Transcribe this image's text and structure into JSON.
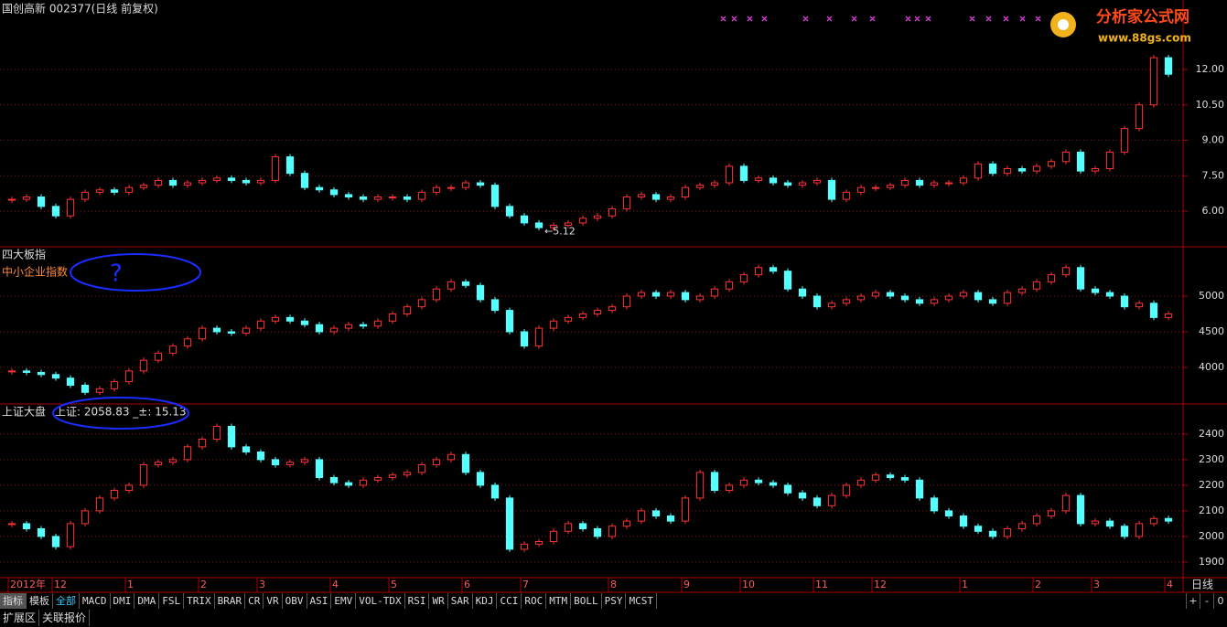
{
  "header": {
    "logo": "分析家公式网",
    "url": "www.88gs.com"
  },
  "chart_data": [
    {
      "type": "candlestick",
      "title": "国创高新 002377(日线 前复权)",
      "up_color": "#ff3232",
      "down_color": "#54ffff",
      "grid": true,
      "values": [
        6.5,
        6.6,
        6.2,
        5.8,
        6.5,
        6.8,
        6.9,
        6.8,
        7.0,
        7.1,
        7.3,
        7.1,
        7.2,
        7.3,
        7.4,
        7.3,
        7.2,
        7.3,
        8.3,
        7.6,
        7.0,
        6.9,
        6.7,
        6.6,
        6.5,
        6.6,
        6.6,
        6.5,
        6.8,
        7.0,
        7.0,
        7.2,
        7.1,
        6.2,
        5.8,
        5.5,
        5.3,
        5.4,
        5.5,
        5.7,
        5.8,
        6.1,
        6.6,
        6.7,
        6.5,
        6.6,
        7.0,
        7.1,
        7.2,
        7.9,
        7.3,
        7.4,
        7.2,
        7.1,
        7.2,
        7.3,
        6.5,
        6.8,
        7.0,
        7.0,
        7.1,
        7.3,
        7.1,
        7.2,
        7.2,
        7.4,
        8.0,
        7.6,
        7.8,
        7.7,
        7.9,
        8.1,
        8.5,
        7.7,
        7.8,
        8.5,
        9.5,
        10.5,
        12.5,
        11.8
      ],
      "ylim": [
        4.49,
        14.17
      ],
      "yticks": [
        {
          "value": 6,
          "label": "6.00"
        },
        {
          "value": 7.5,
          "label": "7.50"
        },
        {
          "value": 9,
          "label": "9.00"
        },
        {
          "value": 10.5,
          "label": "10.50"
        },
        {
          "value": 12,
          "label": "12.00"
        }
      ],
      "min_label": {
        "value": 5.12,
        "label": "←5.12"
      }
    },
    {
      "type": "candlestick",
      "title": "四大板指",
      "subtitle": "中小企业指数",
      "up_color": "#ff3232",
      "down_color": "#54ffff",
      "grid": true,
      "values": [
        3950,
        3930,
        3900,
        3850,
        3750,
        3650,
        3700,
        3800,
        3950,
        4100,
        4200,
        4300,
        4400,
        4550,
        4500,
        4480,
        4550,
        4650,
        4700,
        4650,
        4600,
        4500,
        4550,
        4600,
        4580,
        4650,
        4750,
        4850,
        4950,
        5100,
        5200,
        5150,
        4950,
        4800,
        4500,
        4300,
        4550,
        4650,
        4700,
        4750,
        4800,
        4850,
        5000,
        5050,
        5000,
        5050,
        4950,
        5000,
        5100,
        5200,
        5300,
        5400,
        5350,
        5100,
        5000,
        4850,
        4900,
        4950,
        5000,
        5050,
        5000,
        4950,
        4900,
        4950,
        5000,
        5050,
        4950,
        4900,
        5050,
        5100,
        5200,
        5300,
        5400,
        5100,
        5050,
        5000,
        4850,
        4900,
        4700,
        4750
      ],
      "ylim": [
        3487,
        5628
      ],
      "yticks": [
        4000,
        4500,
        5000
      ]
    },
    {
      "type": "candlestick",
      "title": "上证大盘",
      "subtitle": "上证: 2058.83 _±: 15.13",
      "up_color": "#ff3232",
      "down_color": "#54ffff",
      "grid": true,
      "categories": [
        "2012年",
        null,
        null,
        "12",
        null,
        null,
        null,
        null,
        "1",
        null,
        null,
        null,
        null,
        "2",
        null,
        null,
        null,
        "3",
        null,
        null,
        null,
        null,
        "4",
        null,
        null,
        null,
        "5",
        null,
        null,
        null,
        null,
        "6",
        null,
        null,
        null,
        "7",
        null,
        null,
        null,
        null,
        null,
        "8",
        null,
        null,
        null,
        null,
        "9",
        null,
        null,
        null,
        "10",
        null,
        null,
        null,
        null,
        "11",
        null,
        null,
        null,
        "12",
        null,
        null,
        null,
        null,
        null,
        "1",
        null,
        null,
        null,
        null,
        "2",
        null,
        null,
        null,
        "3",
        null,
        null,
        null,
        null,
        "4"
      ],
      "values": [
        2050,
        2030,
        2000,
        1960,
        2050,
        2100,
        2150,
        2180,
        2200,
        2280,
        2290,
        2300,
        2350,
        2380,
        2430,
        2350,
        2330,
        2300,
        2280,
        2290,
        2300,
        2230,
        2210,
        2200,
        2220,
        2230,
        2240,
        2250,
        2280,
        2300,
        2320,
        2250,
        2200,
        2150,
        1950,
        1970,
        1980,
        2020,
        2050,
        2030,
        2000,
        2040,
        2060,
        2100,
        2080,
        2060,
        2150,
        2250,
        2180,
        2200,
        2220,
        2210,
        2200,
        2170,
        2150,
        2120,
        2160,
        2200,
        2220,
        2240,
        2230,
        2220,
        2150,
        2100,
        2080,
        2040,
        2020,
        2000,
        2030,
        2050,
        2080,
        2100,
        2160,
        2050,
        2060,
        2040,
        2000,
        2050,
        2070,
        2060
      ],
      "ylim": [
        1839,
        2471
      ],
      "yticks": [
        1900,
        2000,
        2100,
        2200,
        2300,
        2400
      ]
    }
  ],
  "annotations": [
    "?"
  ],
  "period": "日线",
  "tabs": [
    "指标",
    "模板",
    "全部",
    "MACD",
    "DMI",
    "DMA",
    "FSL",
    "TRIX",
    "BRAR",
    "CR",
    "VR",
    "OBV",
    "ASI",
    "EMV",
    "VOL-TDX",
    "RSI",
    "WR",
    "SAR",
    "KDJ",
    "CCI",
    "ROC",
    "MTM",
    "BOLL",
    "PSY",
    "MCST"
  ],
  "controls": [
    "+",
    "-",
    "0"
  ],
  "footer_tabs": [
    "扩展区",
    "关联报价"
  ]
}
